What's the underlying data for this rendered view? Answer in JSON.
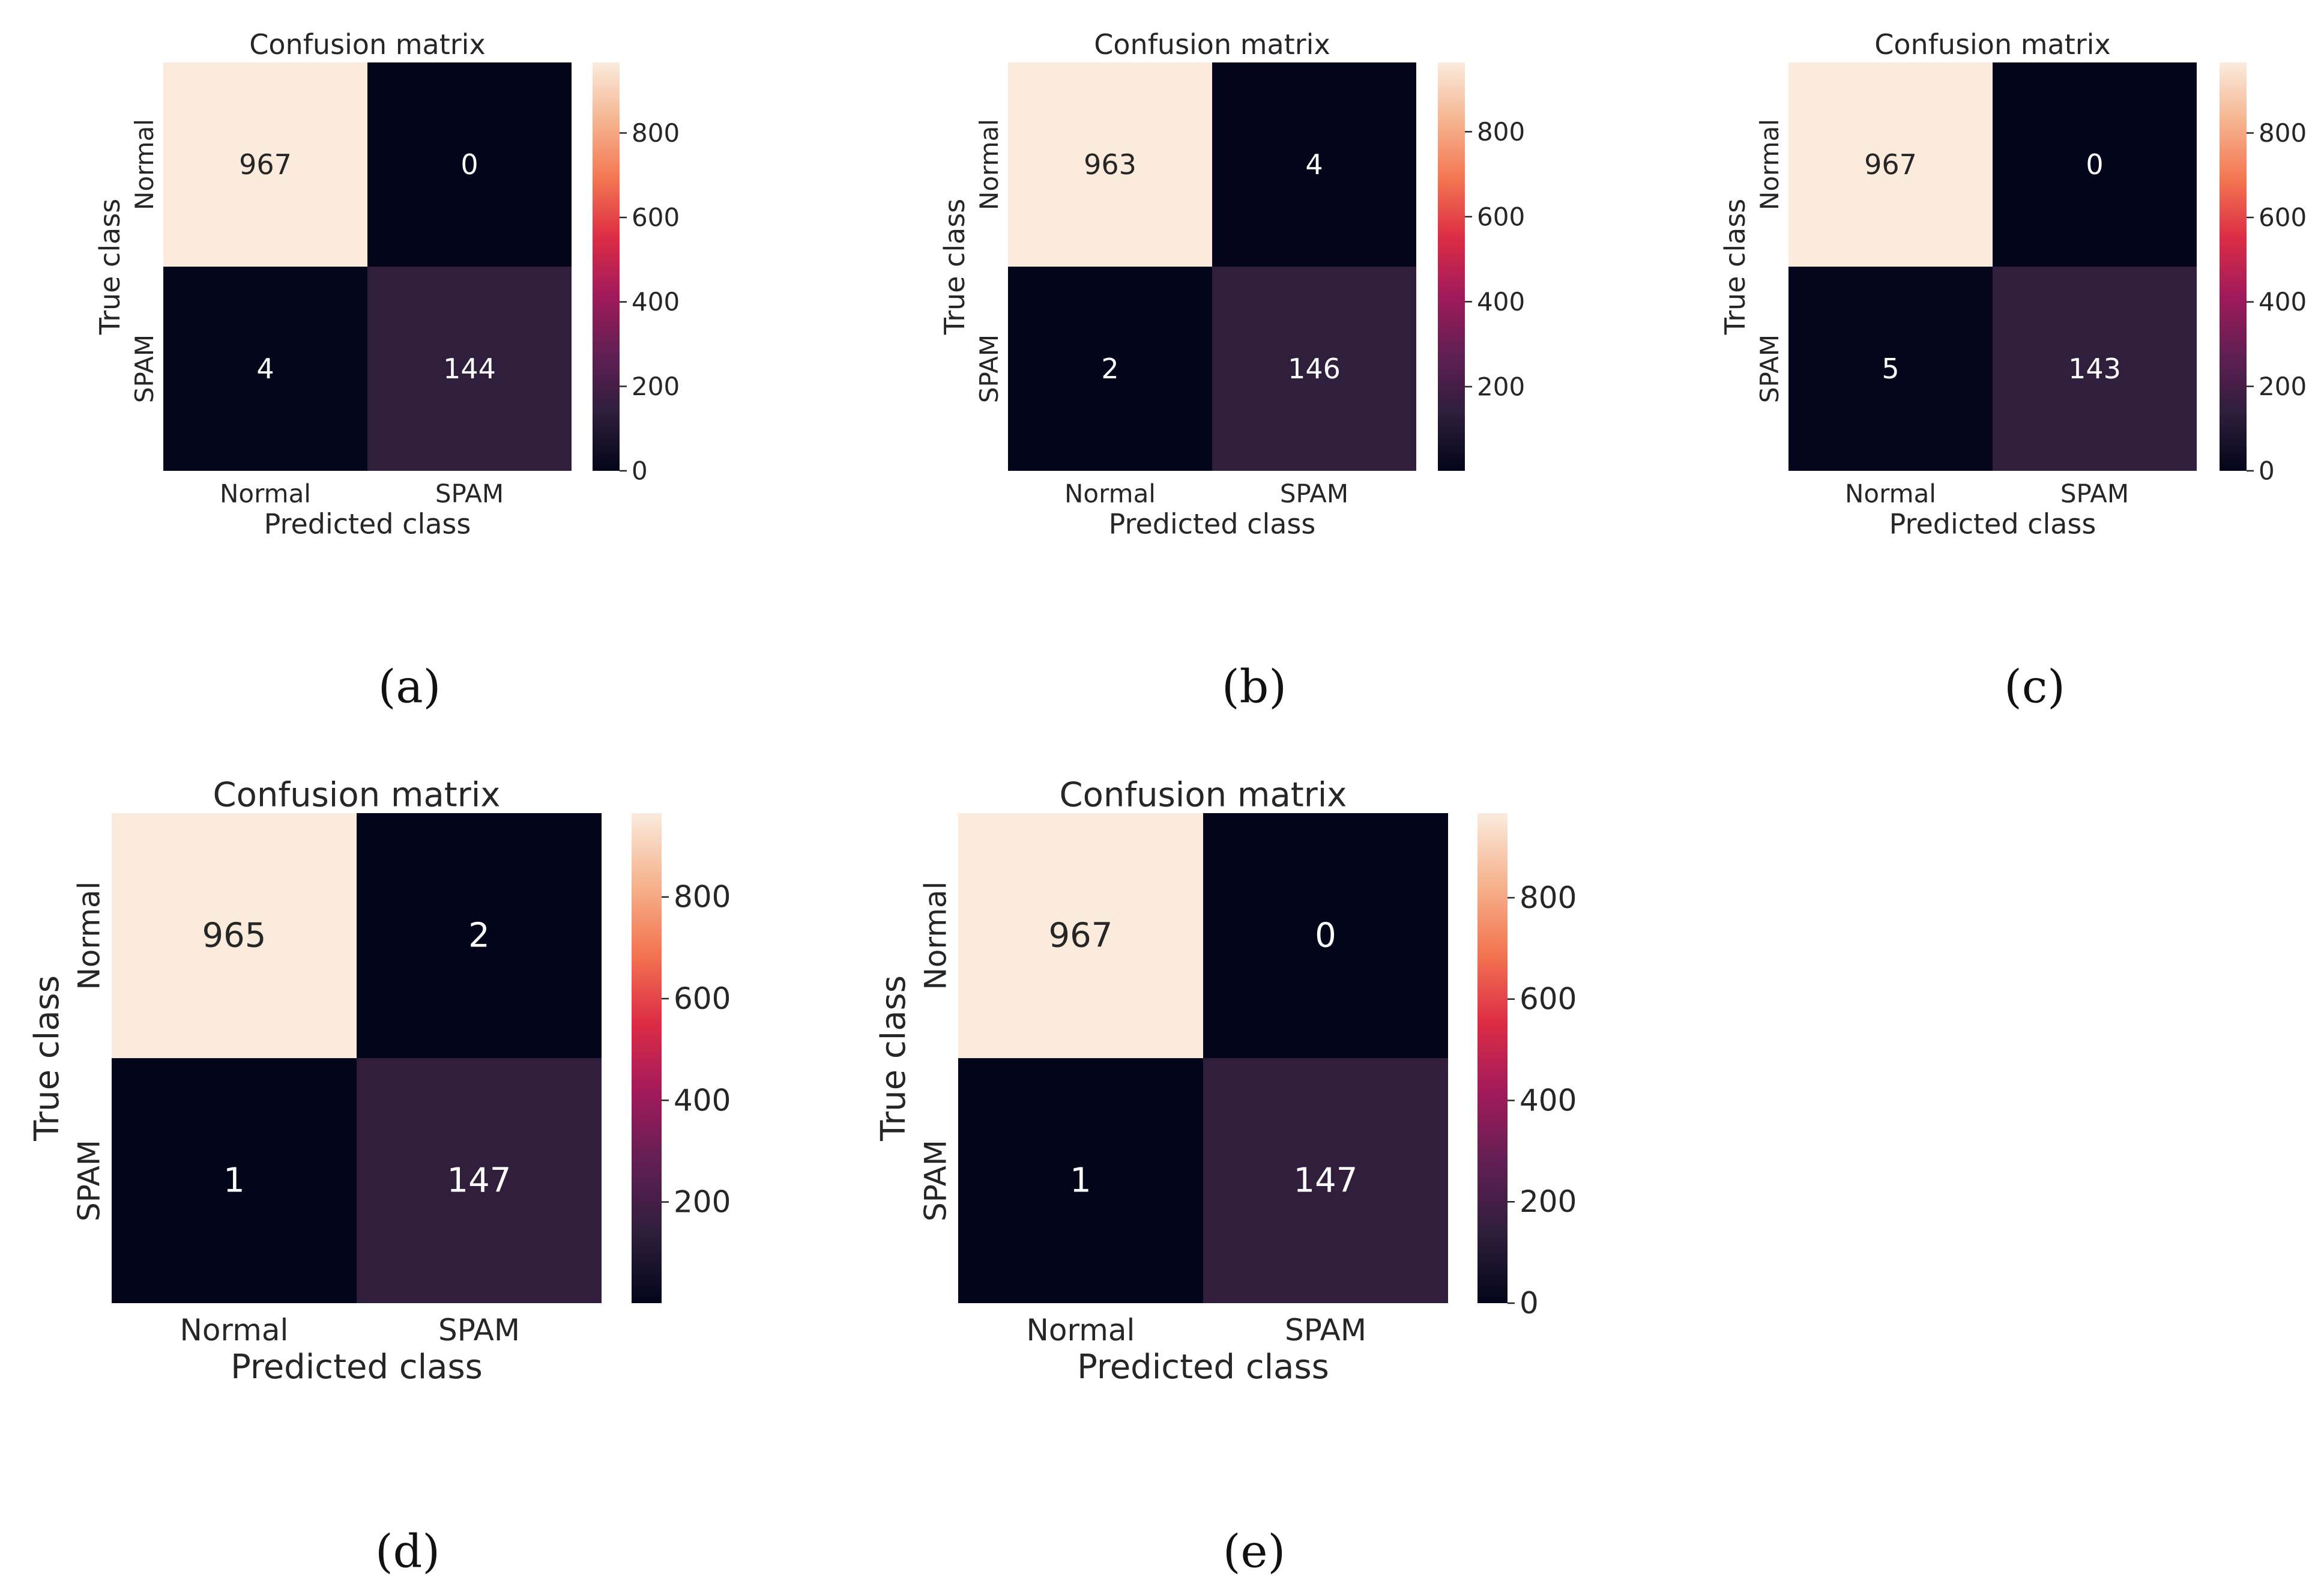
{
  "figure": {
    "colormap": {
      "name": "rocket",
      "stops": [
        "#03051a",
        "#2e1e3c",
        "#611f53",
        "#a11a5b",
        "#dd2c45",
        "#f37651",
        "#f6b48f",
        "#faebdd"
      ]
    },
    "chart_data": [
      {
        "type": "heatmap",
        "caption": "(a)",
        "title": "Confusion matrix",
        "xlabel": "Predicted class",
        "ylabel": "True class",
        "x_categories": [
          "Normal",
          "SPAM"
        ],
        "y_categories": [
          "Normal",
          "SPAM"
        ],
        "values": [
          [
            967,
            0
          ],
          [
            4,
            144
          ]
        ],
        "colorbar": {
          "range": [
            0,
            967
          ],
          "ticks": [
            0,
            200,
            400,
            600,
            800
          ],
          "tick_labels": [
            "0",
            "200",
            "400",
            "600",
            "800"
          ]
        }
      },
      {
        "type": "heatmap",
        "caption": "(b)",
        "title": "Confusion matrix",
        "xlabel": "Predicted class",
        "ylabel": "True class",
        "x_categories": [
          "Normal",
          "SPAM"
        ],
        "y_categories": [
          "Normal",
          "SPAM"
        ],
        "values": [
          [
            963,
            4
          ],
          [
            2,
            146
          ]
        ],
        "colorbar": {
          "range": [
            2,
            963
          ],
          "ticks": [
            200,
            400,
            600,
            800
          ],
          "tick_labels": [
            "200",
            "400",
            "600",
            "800"
          ]
        }
      },
      {
        "type": "heatmap",
        "caption": "(c)",
        "title": "Confusion matrix",
        "xlabel": "Predicted class",
        "ylabel": "True class",
        "x_categories": [
          "Normal",
          "SPAM"
        ],
        "y_categories": [
          "Normal",
          "SPAM"
        ],
        "values": [
          [
            967,
            0
          ],
          [
            5,
            143
          ]
        ],
        "colorbar": {
          "range": [
            0,
            967
          ],
          "ticks": [
            0,
            200,
            400,
            600,
            800
          ],
          "tick_labels": [
            "0",
            "200",
            "400",
            "600",
            "800"
          ]
        }
      },
      {
        "type": "heatmap",
        "caption": "(d)",
        "title": "Confusion matrix",
        "xlabel": "Predicted class",
        "ylabel": "True class",
        "x_categories": [
          "Normal",
          "SPAM"
        ],
        "y_categories": [
          "Normal",
          "SPAM"
        ],
        "values": [
          [
            965,
            2
          ],
          [
            1,
            147
          ]
        ],
        "colorbar": {
          "range": [
            1,
            965
          ],
          "ticks": [
            200,
            400,
            600,
            800
          ],
          "tick_labels": [
            "200",
            "400",
            "600",
            "800"
          ]
        }
      },
      {
        "type": "heatmap",
        "caption": "(e)",
        "title": "Confusion matrix",
        "xlabel": "Predicted class",
        "ylabel": "True class",
        "x_categories": [
          "Normal",
          "SPAM"
        ],
        "y_categories": [
          "Normal",
          "SPAM"
        ],
        "values": [
          [
            967,
            0
          ],
          [
            1,
            147
          ]
        ],
        "colorbar": {
          "range": [
            0,
            967
          ],
          "ticks": [
            0,
            200,
            400,
            600,
            800
          ],
          "tick_labels": [
            "0",
            "200",
            "400",
            "600",
            "800"
          ]
        }
      }
    ]
  }
}
